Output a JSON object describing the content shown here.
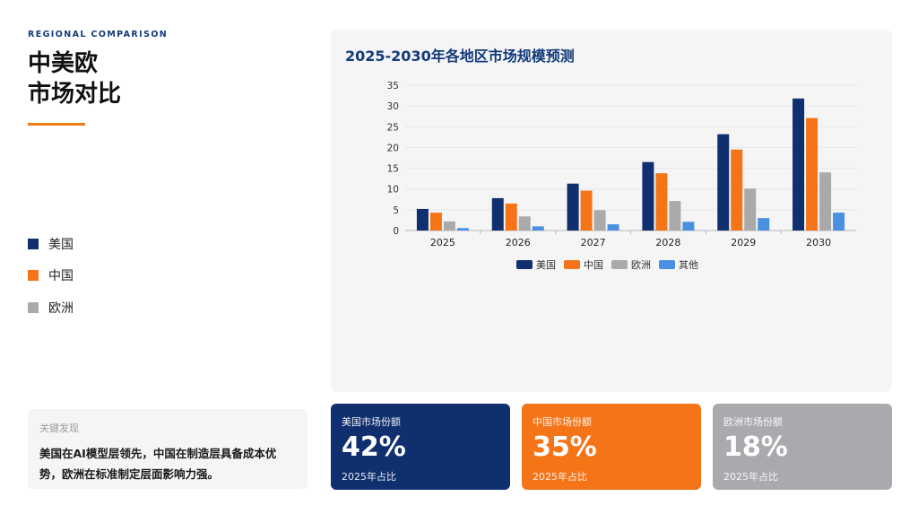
{
  "header": {
    "eyebrow": "REGIONAL COMPARISON",
    "title_line1": "中美欧",
    "title_line2": "市场对比"
  },
  "side_legend": [
    {
      "label": "美国",
      "color": "#0f2f6e"
    },
    {
      "label": "中国",
      "color": "#f57417"
    },
    {
      "label": "欧洲",
      "color": "#aaaaaa"
    }
  ],
  "finding": {
    "label": "关键发现",
    "text": "美国在AI模型层领先，中国在制造层具备成本优势，欧洲在标准制定层面影响力强。"
  },
  "chart_data": {
    "type": "bar",
    "title": "2025-2030年各地区市场规模预测",
    "categories": [
      "2025",
      "2026",
      "2027",
      "2028",
      "2029",
      "2030"
    ],
    "series": [
      {
        "name": "美国",
        "color": "#0f2f6e",
        "values": [
          5.2,
          7.8,
          11.3,
          16.5,
          23.2,
          31.8
        ]
      },
      {
        "name": "中国",
        "color": "#f57417",
        "values": [
          4.3,
          6.5,
          9.6,
          13.8,
          19.5,
          27.1
        ]
      },
      {
        "name": "欧洲",
        "color": "#aaaaaa",
        "values": [
          2.2,
          3.4,
          4.9,
          7.1,
          10.1,
          14.0
        ]
      },
      {
        "name": "其他",
        "color": "#4a90e2",
        "values": [
          0.6,
          1.0,
          1.5,
          2.1,
          3.0,
          4.3
        ]
      }
    ],
    "ylim": [
      0,
      35
    ],
    "yticks": [
      0,
      5,
      10,
      15,
      20,
      25,
      30,
      35
    ],
    "grid": true,
    "legend": "bottom"
  },
  "cards": [
    {
      "label": "美国市场份额",
      "value": "42%",
      "sub": "2025年占比",
      "color": "#0f2f6e"
    },
    {
      "label": "中国市场份额",
      "value": "35%",
      "sub": "2025年占比",
      "color": "#f57417"
    },
    {
      "label": "欧洲市场份额",
      "value": "18%",
      "sub": "2025年占比",
      "color": "#a9aaad"
    }
  ]
}
